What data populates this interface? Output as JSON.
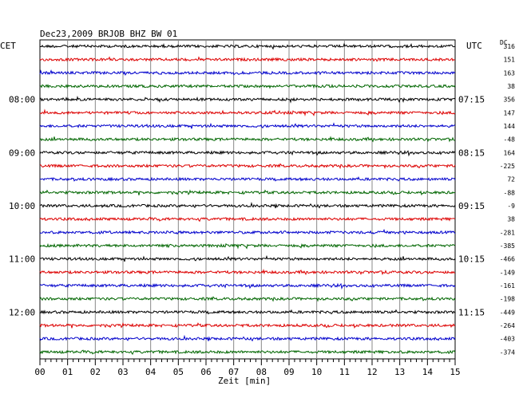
{
  "chart_data": {
    "type": "line",
    "title": "Dec23,2009   BRJOB BHZ BW 01",
    "left_axis_label": "CET",
    "right_axis_label": "UTC",
    "dc_label": "DC",
    "xlabel": "Zeit [min]",
    "xlim": [
      0,
      15
    ],
    "x_ticks": [
      "00",
      "01",
      "02",
      "03",
      "04",
      "05",
      "06",
      "07",
      "08",
      "09",
      "10",
      "11",
      "12",
      "13",
      "14",
      "15"
    ],
    "grid": true,
    "colors": [
      "#000000",
      "#dd0000",
      "#0000cc",
      "#006600"
    ],
    "left_time_labels": [
      {
        "row": 4,
        "label": "08:00"
      },
      {
        "row": 8,
        "label": "09:00"
      },
      {
        "row": 12,
        "label": "10:00"
      },
      {
        "row": 16,
        "label": "11:00"
      },
      {
        "row": 20,
        "label": "12:00"
      }
    ],
    "right_time_labels": [
      {
        "row": 4,
        "label": "07:15"
      },
      {
        "row": 8,
        "label": "08:15"
      },
      {
        "row": 12,
        "label": "09:15"
      },
      {
        "row": 16,
        "label": "10:15"
      },
      {
        "row": 20,
        "label": "11:15"
      }
    ],
    "dc_offsets": [
      "316",
      "151",
      "163",
      "38",
      "356",
      "147",
      "144",
      "-48",
      "164",
      "-225",
      "72",
      "-88",
      "-9",
      "38",
      "-281",
      "-385",
      "-466",
      "-149",
      "-161",
      "-198",
      "-449",
      "-264",
      "-403",
      "-374"
    ],
    "trace_count": 24
  }
}
